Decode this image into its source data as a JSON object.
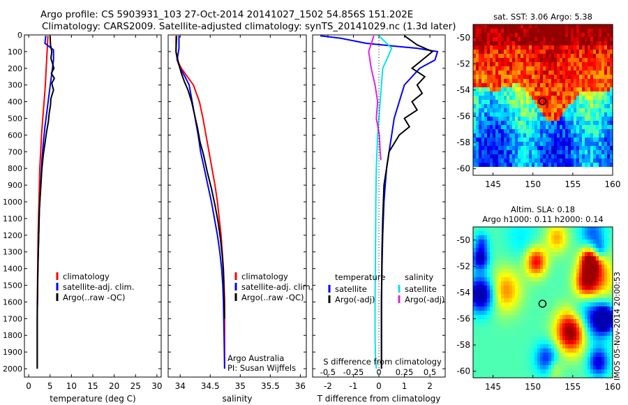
{
  "header": {
    "line1": "Argo profile: CS 5903931_103 27-Oct-2014 20141027_1502 54.856S 151.202E",
    "line2": "Climatology: CARS2009. Satellite-adjusted climatology: synTS_20141029.nc (1.3d later)"
  },
  "footer_stamp": "IMOS 05-Nov-2014 20:00:53",
  "colors": {
    "climatology": "#ff0000",
    "satellite": "#0000ff",
    "argo": "#000000",
    "cyan": "#00e5ee",
    "magenta": "#e020e0"
  },
  "chart_data": [
    {
      "type": "line",
      "id": "temperature",
      "xlabel": "temperature (deg C)",
      "ylabel": "",
      "xlim": [
        -1,
        31
      ],
      "ylim": [
        2050,
        0
      ],
      "xticks": [
        0,
        5,
        10,
        15,
        20,
        25,
        30
      ],
      "yticks": [
        0,
        100,
        200,
        300,
        400,
        500,
        600,
        700,
        800,
        900,
        1000,
        1100,
        1200,
        1300,
        1400,
        1500,
        1600,
        1700,
        1800,
        1900,
        2000
      ],
      "legend": [
        "climatology",
        "satellite-adj. clim.",
        "Argo(..raw -QC)"
      ],
      "legend_position": "lower-center",
      "series": [
        {
          "name": "climatology",
          "color": "#ff0000",
          "x": [
            4.5,
            4.3,
            4.1,
            3.9,
            3.6,
            3.3,
            3.0,
            2.8,
            2.6,
            2.5,
            2.4,
            2.3,
            2.2,
            2.15,
            2.1,
            2.05,
            2.0,
            2.0,
            2.0,
            2.0,
            2.0
          ],
          "y": [
            5,
            100,
            200,
            300,
            400,
            500,
            600,
            700,
            800,
            900,
            1000,
            1100,
            1200,
            1300,
            1400,
            1500,
            1600,
            1700,
            1800,
            1900,
            2000
          ]
        },
        {
          "name": "satellite-adj. clim.",
          "color": "#0000ff",
          "x": [
            4.0,
            3.8,
            5.8,
            5.8,
            5.3,
            4.8,
            4.3,
            3.8,
            3.4,
            3.1,
            2.9,
            2.7,
            2.5,
            2.4,
            2.3,
            2.2,
            2.1,
            2.1,
            2.0,
            2.0,
            2.0,
            2.0
          ],
          "y": [
            5,
            50,
            90,
            150,
            250,
            350,
            450,
            550,
            650,
            750,
            850,
            950,
            1050,
            1150,
            1250,
            1350,
            1450,
            1550,
            1650,
            1750,
            1900,
            2000
          ]
        },
        {
          "name": "Argo(..raw -QC)",
          "color": "#000000",
          "x": [
            5.0,
            5.1,
            5.4,
            5.2,
            5.9,
            5.3,
            6.0,
            5.4,
            5.8,
            5.2,
            5.1,
            4.8,
            4.6,
            4.2,
            3.8,
            3.4,
            3.1,
            2.9,
            2.7,
            2.5,
            2.4,
            2.3,
            2.2,
            2.1,
            2.0,
            2.0
          ],
          "y": [
            5,
            60,
            100,
            140,
            200,
            230,
            260,
            290,
            330,
            380,
            420,
            470,
            520,
            580,
            650,
            720,
            800,
            880,
            960,
            1050,
            1150,
            1250,
            1350,
            1500,
            1700,
            2000
          ]
        }
      ]
    },
    {
      "type": "line",
      "id": "salinity",
      "xlabel": "salinity",
      "ylabel": "",
      "xlim": [
        33.8,
        36.1
      ],
      "ylim": [
        2050,
        0
      ],
      "xticks": [
        34,
        34.5,
        35,
        35.5,
        36
      ],
      "yticks": [
        0,
        100,
        200,
        300,
        400,
        500,
        600,
        700,
        800,
        900,
        1000,
        1100,
        1200,
        1300,
        1400,
        1500,
        1600,
        1700,
        1800,
        1900,
        2000
      ],
      "legend": [
        "climatology",
        "satellite-adj. clim.",
        "Argo(..raw -QC)"
      ],
      "legend_position": "lower-center",
      "annotations": [
        "Argo Australia",
        "PI: Susan Wijffels"
      ],
      "series": [
        {
          "name": "climatology",
          "color": "#ff0000",
          "x": [
            33.93,
            33.93,
            33.95,
            34.02,
            34.12,
            34.22,
            34.32,
            34.38,
            34.43,
            34.48,
            34.53,
            34.58,
            34.62,
            34.65,
            34.68,
            34.7,
            34.72,
            34.73,
            34.74,
            34.74,
            34.74
          ],
          "y": [
            5,
            100,
            150,
            200,
            250,
            300,
            400,
            500,
            600,
            700,
            800,
            900,
            1000,
            1100,
            1200,
            1300,
            1400,
            1500,
            1600,
            1800,
            2000
          ]
        },
        {
          "name": "satellite-adj. clim.",
          "color": "#0000ff",
          "x": [
            33.98,
            33.98,
            33.95,
            34.0,
            34.08,
            34.15,
            34.2,
            34.25,
            34.3,
            34.34,
            34.4,
            34.46,
            34.52,
            34.57,
            34.62,
            34.66,
            34.69,
            34.71,
            34.72,
            34.73,
            34.74
          ],
          "y": [
            5,
            80,
            150,
            200,
            250,
            300,
            400,
            500,
            600,
            700,
            800,
            900,
            1000,
            1100,
            1200,
            1300,
            1400,
            1500,
            1600,
            1800,
            2000
          ]
        },
        {
          "name": "Argo(..raw -QC)",
          "color": "#000000",
          "x": [
            33.94,
            33.93,
            33.98,
            34.02,
            34.07,
            34.13,
            34.19,
            34.24,
            34.29,
            34.33,
            34.39,
            34.45,
            34.52,
            34.58,
            34.63,
            34.67,
            34.7,
            34.72,
            34.73,
            34.74
          ],
          "y": [
            5,
            100,
            180,
            230,
            280,
            330,
            400,
            480,
            560,
            640,
            720,
            820,
            920,
            1020,
            1120,
            1220,
            1320,
            1420,
            1540,
            1700
          ]
        }
      ]
    },
    {
      "type": "line",
      "id": "difference",
      "xlabel": "T difference from climatology",
      "xlabel_top": "S difference from climatology",
      "xlim": [
        -2.6,
        2.6
      ],
      "ylim": [
        2050,
        0
      ],
      "xticks": [
        -2,
        -1,
        0,
        1,
        2
      ],
      "xticks_secondary": [
        -0.5,
        -0.25,
        0,
        0.25,
        0.5
      ],
      "yticks": [
        0,
        100,
        200,
        300,
        400,
        500,
        600,
        700,
        800,
        900,
        1000,
        1100,
        1200,
        1300,
        1400,
        1500,
        1600,
        1700,
        1800,
        1900,
        2000
      ],
      "legend": [
        {
          "group": "temperature",
          "items": [
            {
              "name": "satellite",
              "color": "#0000ff"
            },
            {
              "name": "Argo(-adj)",
              "color": "#000000"
            }
          ]
        },
        {
          "group": "salinity",
          "items": [
            {
              "name": "satellite",
              "color": "#00e5ee"
            },
            {
              "name": "Argo(-adj)",
              "color": "#e020e0"
            }
          ]
        }
      ],
      "series": [
        {
          "name": "satellite",
          "group": "temperature",
          "color": "#0000ff",
          "x": [
            -2.3,
            -1.5,
            -0.5,
            0.8,
            1.5,
            2.3,
            2.2,
            1.6,
            1.0,
            0.8,
            0.6,
            0.5,
            0.4,
            0.3,
            0.25,
            0.2,
            0.15,
            0.12,
            0.1,
            0.1,
            0.1
          ],
          "y": [
            5,
            20,
            50,
            70,
            80,
            100,
            150,
            200,
            300,
            400,
            500,
            600,
            700,
            800,
            900,
            1000,
            1200,
            1400,
            1600,
            1800,
            2000
          ]
        },
        {
          "name": "Argo(-adj)",
          "group": "temperature",
          "color": "#000000",
          "x": [
            1.0,
            1.5,
            2.1,
            1.7,
            1.3,
            1.8,
            1.5,
            1.7,
            1.3,
            1.5,
            1.0,
            1.2,
            0.8,
            0.6,
            0.4,
            0.3,
            0.2,
            0.15,
            0.12,
            0.1,
            0.1
          ],
          "y": [
            5,
            60,
            100,
            150,
            200,
            250,
            300,
            350,
            400,
            450,
            500,
            550,
            600,
            650,
            700,
            800,
            900,
            1100,
            1300,
            1600,
            2000
          ]
        },
        {
          "name": "satellite",
          "group": "salinity",
          "color": "#00e5ee",
          "x": [
            0,
            0.5,
            0.3,
            0.15,
            0.1,
            0.05,
            0,
            -0.05,
            -0.1,
            -0.12,
            -0.13,
            -0.14,
            -0.15,
            -0.15,
            -0.15,
            -0.14,
            -0.13,
            -0.1
          ],
          "y": [
            5,
            80,
            150,
            200,
            300,
            400,
            500,
            600,
            800,
            1000,
            1200,
            1400,
            1600,
            1700,
            1800,
            1900,
            1950,
            2000
          ]
        },
        {
          "name": "Argo(-adj)",
          "group": "salinity",
          "color": "#e020e0",
          "x": [
            -0.2,
            -0.4,
            -0.3,
            -0.15,
            -0.05,
            -0.1,
            0.02,
            0.05,
            0.08
          ],
          "y": [
            5,
            100,
            200,
            300,
            400,
            500,
            600,
            700,
            750
          ]
        }
      ]
    },
    {
      "type": "heatmap",
      "id": "sst_map",
      "title": "sat. SST: 3.06 Argo: 5.38",
      "xlim": [
        142.5,
        160
      ],
      "ylim": [
        -60.5,
        -49
      ],
      "xticks": [
        145,
        150,
        155,
        160
      ],
      "yticks": [
        -50,
        -52,
        -54,
        -56,
        -58,
        -60
      ],
      "marker": {
        "lon": 151.202,
        "lat": -54.856
      }
    },
    {
      "type": "heatmap",
      "id": "sla_map",
      "title": "Altim. SLA: 0.18",
      "subtitle": "Argo h1000: 0.11 h2000: 0.14",
      "xlim": [
        142.5,
        160
      ],
      "ylim": [
        -60.5,
        -49
      ],
      "xticks": [
        145,
        150,
        155,
        160
      ],
      "yticks": [
        -50,
        -52,
        -54,
        -56,
        -58,
        -60
      ],
      "marker": {
        "lon": 151.202,
        "lat": -54.856
      }
    }
  ]
}
